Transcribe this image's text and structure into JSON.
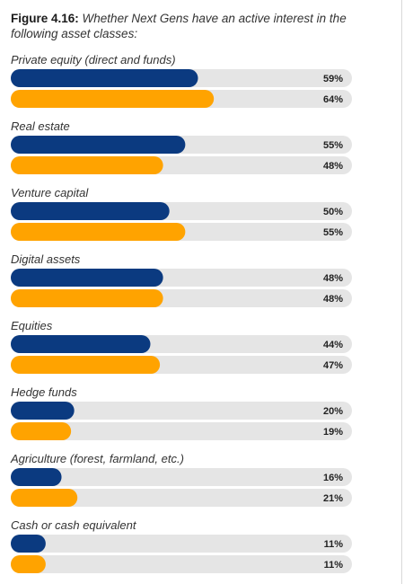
{
  "header": {
    "figure_label": "Figure 4.16:",
    "description": "Whether Next Gens have an active interest in the following asset classes:"
  },
  "colors": {
    "series_a": "#0b3a80",
    "series_b": "#ffa300",
    "track": "#e5e5e5"
  },
  "chart_data": {
    "type": "bar",
    "orientation": "horizontal",
    "value_suffix": "%",
    "xlim": [
      0,
      100
    ],
    "categories": [
      "Private equity (direct and funds)",
      "Real estate",
      "Venture capital",
      "Digital assets",
      "Equities",
      "Hedge funds",
      "Agriculture (forest, farmland, etc.)",
      "Cash or cash equivalent"
    ],
    "series": [
      {
        "values": [
          59,
          55,
          50,
          48,
          44,
          20,
          16,
          11
        ]
      },
      {
        "values": [
          64,
          48,
          55,
          48,
          47,
          19,
          21,
          11
        ]
      }
    ]
  }
}
